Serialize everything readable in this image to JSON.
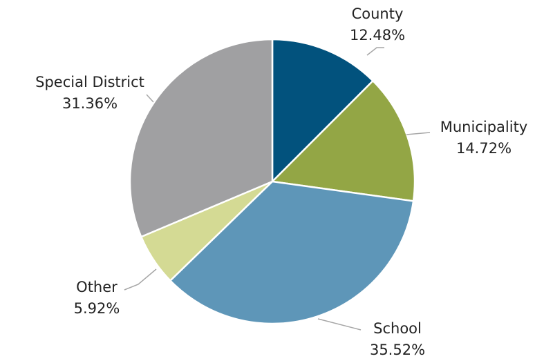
{
  "chart_data": {
    "type": "pie",
    "categories": [
      "County",
      "Municipality",
      "School",
      "Other",
      "Special District"
    ],
    "values": [
      12.48,
      14.72,
      35.52,
      5.92,
      31.36
    ],
    "value_labels": [
      "12.48%",
      "14.72%",
      "35.52%",
      "5.92%",
      "31.36%"
    ],
    "colors": [
      "#02527d",
      "#93a645",
      "#5e96b8",
      "#d4da94",
      "#a0a0a2"
    ]
  }
}
